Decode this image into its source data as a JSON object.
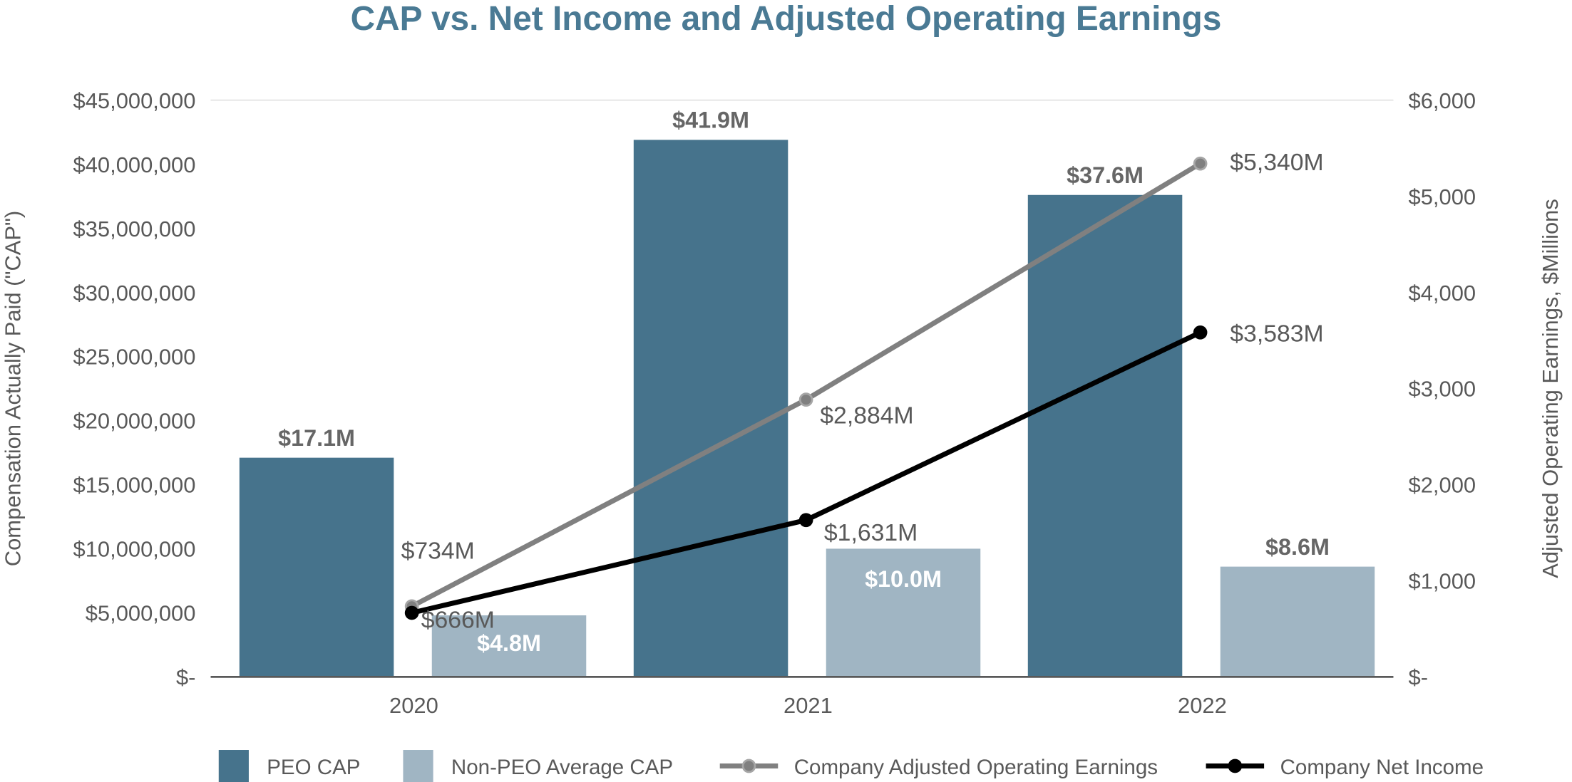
{
  "chart_data": {
    "type": "bar",
    "title": "CAP vs. Net Income and Adjusted Operating Earnings",
    "categories": [
      "2020",
      "2021",
      "2022"
    ],
    "ylabel": "Compensation Actually Paid (\"CAP\")",
    "y2label": "Adjusted Operating Earnings, $Millions",
    "ylim": [
      0,
      45000000
    ],
    "y2lim": [
      0,
      6000
    ],
    "yticks": [
      "$-",
      "$5,000,000",
      "$10,000,000",
      "$15,000,000",
      "$20,000,000",
      "$25,000,000",
      "$30,000,000",
      "$35,000,000",
      "$40,000,000",
      "$45,000,000"
    ],
    "y2ticks": [
      "$-",
      "$1,000",
      "$2,000",
      "$3,000",
      "$4,000",
      "$5,000",
      "$6,000"
    ],
    "grid": false,
    "legend_position": "bottom",
    "series": [
      {
        "name": "PEO CAP",
        "kind": "bar",
        "axis": "left",
        "color": "#46738c",
        "values": [
          17100000,
          41900000,
          37600000
        ],
        "labels": [
          "$17.1M",
          "$41.9M",
          "$37.6M"
        ]
      },
      {
        "name": "Non-PEO Average CAP",
        "kind": "bar",
        "axis": "left",
        "color": "#a0b5c3",
        "values": [
          4800000,
          10000000,
          8600000
        ],
        "labels": [
          "$4.8M",
          "$10.0M",
          "$8.6M"
        ]
      },
      {
        "name": "Company Adjusted Operating Earnings",
        "kind": "line",
        "axis": "right",
        "color": "#808080",
        "values": [
          734,
          2884,
          5340
        ],
        "labels": [
          "$734M",
          "$2,884M",
          "$5,340M"
        ]
      },
      {
        "name": "Company Net Income",
        "kind": "line",
        "axis": "right",
        "color": "#000000",
        "values": [
          666,
          1631,
          3583
        ],
        "labels": [
          "$666M",
          "$1,631M",
          "$3,583M"
        ]
      }
    ],
    "title_color": "#4a7a94"
  }
}
